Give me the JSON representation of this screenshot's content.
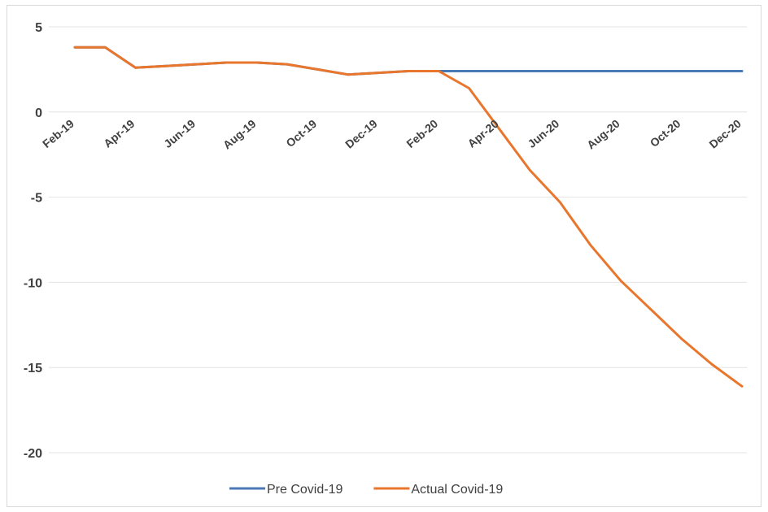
{
  "chart_data": {
    "type": "line",
    "title": "",
    "xlabel": "",
    "ylabel": "",
    "x": [
      "Feb-19",
      "Mar-19",
      "Apr-19",
      "May-19",
      "Jun-19",
      "Jul-19",
      "Aug-19",
      "Sep-19",
      "Oct-19",
      "Nov-19",
      "Dec-19",
      "Jan-20",
      "Feb-20",
      "Mar-20",
      "Apr-20",
      "May-20",
      "Jun-20",
      "Jul-20",
      "Aug-20",
      "Sep-20",
      "Oct-20",
      "Nov-20",
      "Dec-20"
    ],
    "x_tick_labels": [
      "Feb-19",
      "Apr-19",
      "Jun-19",
      "Aug-19",
      "Oct-19",
      "Dec-19",
      "Feb-20",
      "Apr-20",
      "Jun-20",
      "Aug-20",
      "Oct-20",
      "Dec-20"
    ],
    "yticks": [
      5,
      0,
      -5,
      -10,
      -15,
      -20
    ],
    "ylim": [
      -20,
      5
    ],
    "grid": true,
    "legend_position": "bottom",
    "series": [
      {
        "name": "Pre Covid-19",
        "color": "#4a7ab5",
        "values": [
          3.8,
          3.8,
          2.6,
          2.7,
          2.8,
          2.9,
          2.9,
          2.8,
          2.5,
          2.2,
          2.3,
          2.4,
          2.4,
          2.4,
          2.4,
          2.4,
          2.4,
          2.4,
          2.4,
          2.4,
          2.4,
          2.4,
          2.4
        ]
      },
      {
        "name": "Actual Covid-19",
        "color": "#e8762c",
        "values": [
          3.8,
          3.8,
          2.6,
          2.7,
          2.8,
          2.9,
          2.9,
          2.8,
          2.5,
          2.2,
          2.3,
          2.4,
          2.4,
          1.4,
          -1.0,
          -3.4,
          -5.3,
          -7.8,
          -9.9,
          -11.6,
          -13.3,
          -14.8,
          -16.1
        ]
      }
    ]
  }
}
